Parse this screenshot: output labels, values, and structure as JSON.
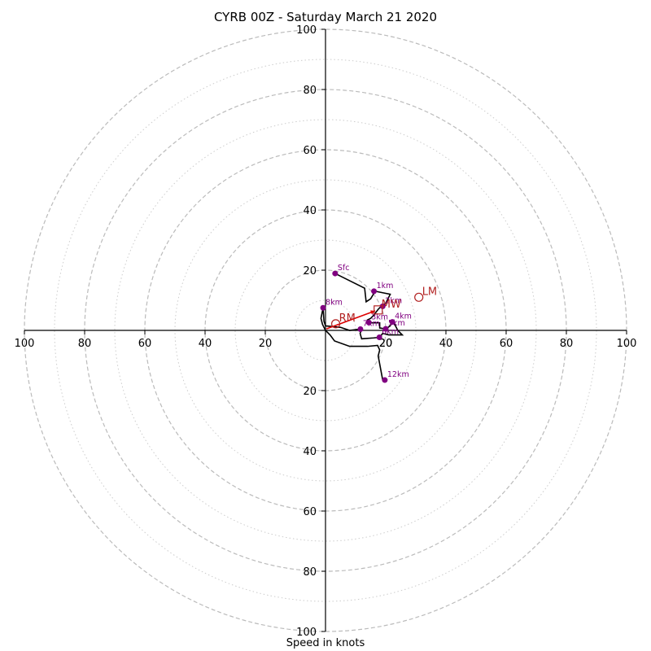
{
  "chart_data": {
    "type": "hodograph",
    "title": "CYRB 00Z - Saturday March 21 2020",
    "xlabel": "Speed in knots",
    "max_speed": 100,
    "ring_speeds_dashed": [
      20,
      40,
      60,
      80,
      100
    ],
    "ring_speeds_dotted": [
      10,
      30,
      50,
      70,
      90
    ],
    "axis_ticks": [
      {
        "value": 100,
        "label": "100"
      },
      {
        "value": 80,
        "label": "80"
      },
      {
        "value": 60,
        "label": "60"
      },
      {
        "value": 40,
        "label": "40"
      },
      {
        "value": 20,
        "label": "20"
      }
    ],
    "x_axis_inner_label": "20",
    "grid": true,
    "colors": {
      "grid": "#bbbbbb",
      "axis": "#000000",
      "trace": "#000000",
      "marker": "#800080",
      "motion": "#b22222",
      "shear": "#dd0000"
    },
    "trace": [
      [
        3.2,
        18.9
      ],
      [
        8,
        16.5
      ],
      [
        13,
        14
      ],
      [
        13.5,
        9.5
      ],
      [
        15,
        10.5
      ],
      [
        16.5,
        13
      ],
      [
        19,
        12.5
      ],
      [
        21.5,
        12
      ],
      [
        20,
        9
      ],
      [
        18.5,
        8
      ],
      [
        17.5,
        7
      ],
      [
        16,
        5
      ],
      [
        15,
        4
      ],
      [
        14,
        3.5
      ],
      [
        15,
        2.5
      ],
      [
        18,
        2.5
      ],
      [
        18,
        0.8
      ],
      [
        20,
        0.5
      ],
      [
        21.5,
        1.5
      ],
      [
        22,
        3
      ],
      [
        23,
        2
      ],
      [
        24,
        0
      ],
      [
        25.5,
        -1.5
      ],
      [
        21,
        -1.5
      ],
      [
        19,
        -1
      ],
      [
        18,
        -2.3
      ],
      [
        16,
        -2.5
      ],
      [
        12,
        -2.8
      ],
      [
        11.5,
        -1
      ],
      [
        12,
        0.5
      ],
      [
        8,
        0
      ],
      [
        5,
        1
      ],
      [
        0,
        1.5
      ],
      [
        -0.5,
        3
      ],
      [
        -0.8,
        7.5
      ],
      [
        -1.5,
        4
      ],
      [
        -1,
        2
      ],
      [
        0,
        0
      ],
      [
        1.5,
        -1.5
      ],
      [
        3,
        -3.5
      ],
      [
        8,
        -5.3
      ],
      [
        14,
        -5.3
      ],
      [
        17.3,
        -5
      ],
      [
        18,
        -6.5
      ],
      [
        17.5,
        -8.5
      ],
      [
        19,
        -16.5
      ]
    ],
    "height_markers": [
      {
        "label": "Sfc",
        "u": 3.2,
        "v": 18.9
      },
      {
        "label": "1km",
        "u": 16.1,
        "v": 13
      },
      {
        "label": "2km",
        "u": 19,
        "v": 8
      },
      {
        "label": "3km",
        "u": 14.4,
        "v": 2.6
      },
      {
        "label": "4km",
        "u": 22.2,
        "v": 2.8
      },
      {
        "label": "5km",
        "u": 20,
        "v": 0.5
      },
      {
        "label": "6km",
        "u": 17.9,
        "v": -2.3
      },
      {
        "label": "7km",
        "u": 11.6,
        "v": 0.4
      },
      {
        "label": "8km",
        "u": -0.8,
        "v": 7.5
      },
      {
        "label": "12km",
        "u": 19.7,
        "v": -16.5
      }
    ],
    "storm_motion": [
      {
        "label": "LM",
        "u": 31,
        "v": 11
      },
      {
        "label": "RM",
        "u": 3.4,
        "v": 2.2
      },
      {
        "label": "MW",
        "u": 17.5,
        "v": 6.8
      }
    ],
    "shear_vector": {
      "from": [
        0.3,
        0.5
      ],
      "to": [
        16.5,
        6.5
      ]
    }
  }
}
